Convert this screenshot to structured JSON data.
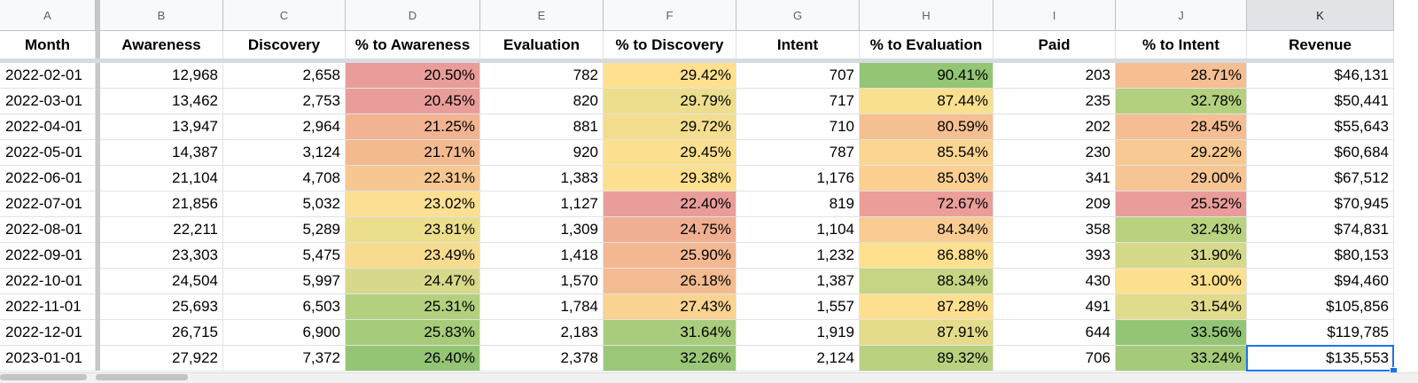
{
  "columns": [
    "A",
    "B",
    "C",
    "D",
    "E",
    "F",
    "G",
    "H",
    "I",
    "J",
    "K"
  ],
  "selected_column": "K",
  "headers": [
    "Month",
    "Awareness",
    "Discovery",
    "% to Awareness",
    "Evaluation",
    "% to Discovery",
    "Intent",
    "% to Evaluation",
    "Paid",
    "% to Intent",
    "Revenue"
  ],
  "rows": [
    [
      "2022-02-01",
      "12,968",
      "2,658",
      "20.50%",
      "782",
      "29.42%",
      "707",
      "90.41%",
      "203",
      "28.71%",
      "$46,131"
    ],
    [
      "2022-03-01",
      "13,462",
      "2,753",
      "20.45%",
      "820",
      "29.79%",
      "717",
      "87.44%",
      "235",
      "32.78%",
      "$50,441"
    ],
    [
      "2022-04-01",
      "13,947",
      "2,964",
      "21.25%",
      "881",
      "29.72%",
      "710",
      "80.59%",
      "202",
      "28.45%",
      "$55,643"
    ],
    [
      "2022-05-01",
      "14,387",
      "3,124",
      "21.71%",
      "920",
      "29.45%",
      "787",
      "85.54%",
      "230",
      "29.22%",
      "$60,684"
    ],
    [
      "2022-06-01",
      "21,104",
      "4,708",
      "22.31%",
      "1,383",
      "29.38%",
      "1,176",
      "85.03%",
      "341",
      "29.00%",
      "$67,512"
    ],
    [
      "2022-07-01",
      "21,856",
      "5,032",
      "23.02%",
      "1,127",
      "22.40%",
      "819",
      "72.67%",
      "209",
      "25.52%",
      "$70,945"
    ],
    [
      "2022-08-01",
      "22,211",
      "5,289",
      "23.81%",
      "1,309",
      "24.75%",
      "1,104",
      "84.34%",
      "358",
      "32.43%",
      "$74,831"
    ],
    [
      "2022-09-01",
      "23,303",
      "5,475",
      "23.49%",
      "1,418",
      "25.90%",
      "1,232",
      "86.88%",
      "393",
      "31.90%",
      "$80,153"
    ],
    [
      "2022-10-01",
      "24,504",
      "5,997",
      "24.47%",
      "1,570",
      "26.18%",
      "1,387",
      "88.34%",
      "430",
      "31.00%",
      "$94,460"
    ],
    [
      "2022-11-01",
      "25,693",
      "6,503",
      "25.31%",
      "1,784",
      "27.43%",
      "1,557",
      "87.28%",
      "491",
      "31.54%",
      "$105,856"
    ],
    [
      "2022-12-01",
      "26,715",
      "6,900",
      "25.83%",
      "2,183",
      "31.64%",
      "1,919",
      "87.91%",
      "644",
      "33.56%",
      "$119,785"
    ],
    [
      "2023-01-01",
      "27,922",
      "7,372",
      "26.40%",
      "2,378",
      "32.26%",
      "2,124",
      "89.32%",
      "706",
      "33.24%",
      "$135,553"
    ]
  ],
  "conditional_colors": {
    "D": [
      "#e99d9a",
      "#e99d9a",
      "#f1b391",
      "#f3ba90",
      "#f6c791",
      "#fbdf92",
      "#ebdf8e",
      "#f7dc90",
      "#d7d98a",
      "#b3d07f",
      "#a6cb79",
      "#93c575"
    ],
    "F": [
      "#ffe08e",
      "#ecde8e",
      "#f3de8f",
      "#fbe08f",
      "#fde08f",
      "#e99d9a",
      "#f0af93",
      "#f3b892",
      "#f3bb91",
      "#f8d391",
      "#a9cd7c",
      "#9ac878"
    ],
    "H": [
      "#93c575",
      "#f8e08e",
      "#f5c091",
      "#fcd592",
      "#fbd090",
      "#ea9d99",
      "#f8cc92",
      "#ffe08e",
      "#c6d584",
      "#fde08f",
      "#e4dc8b",
      "#b8d17f"
    ],
    "J": [
      "#f5be93",
      "#b3d07f",
      "#f5bd93",
      "#f8c992",
      "#f7c593",
      "#e99d9a",
      "#b9d280",
      "#d5d98a",
      "#fde08e",
      "#e1db8c",
      "#94c576",
      "#a5cb7a"
    ]
  }
}
